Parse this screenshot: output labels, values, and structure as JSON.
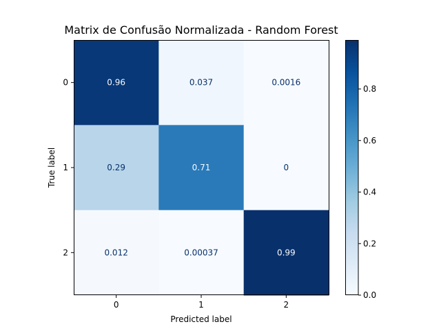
{
  "chart_data": {
    "type": "heatmap",
    "title": "Matrix de Confusão Normalizada - Random Forest",
    "xlabel": "Predicted label",
    "ylabel": "True label",
    "x_categories": [
      "0",
      "1",
      "2"
    ],
    "y_categories": [
      "0",
      "1",
      "2"
    ],
    "values": [
      [
        0.96,
        0.037,
        0.0016
      ],
      [
        0.29,
        0.71,
        0
      ],
      [
        0.012,
        0.00037,
        0.99
      ]
    ],
    "cell_labels": [
      [
        "0.96",
        "0.037",
        "0.0016"
      ],
      [
        "0.29",
        "0.71",
        "0"
      ],
      [
        "0.012",
        "0.00037",
        "0.99"
      ]
    ],
    "colormap": "Blues",
    "colorbar": {
      "range": [
        0,
        0.99
      ],
      "ticks": [
        0.0,
        0.2,
        0.4,
        0.6,
        0.8
      ],
      "tick_labels": [
        "0.0",
        "0.2",
        "0.4",
        "0.6",
        "0.8"
      ]
    },
    "grid": false
  }
}
